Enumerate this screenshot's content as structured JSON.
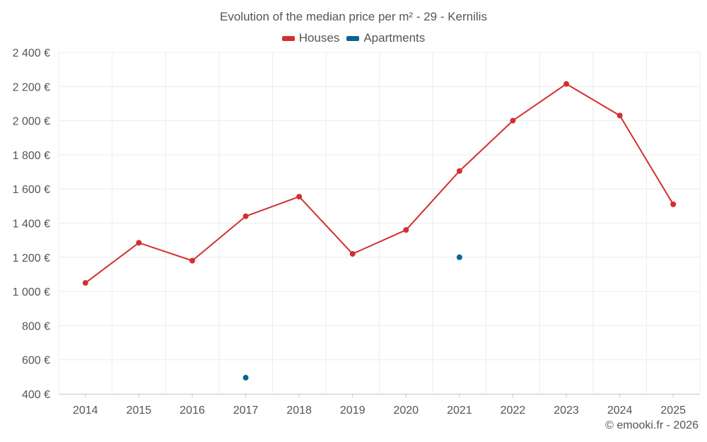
{
  "chart_data": {
    "type": "line",
    "title": "Evolution of the median price per m² - 29 - Kernilis",
    "categories": [
      "2014",
      "2015",
      "2016",
      "2017",
      "2018",
      "2019",
      "2020",
      "2021",
      "2022",
      "2023",
      "2024",
      "2025"
    ],
    "yticks": [
      400,
      600,
      800,
      1000,
      1200,
      1400,
      1600,
      1800,
      2000,
      2200,
      2400
    ],
    "ytick_labels": [
      "400 €",
      "600 €",
      "800 €",
      "1 000 €",
      "1 200 €",
      "1 400 €",
      "1 600 €",
      "1 800 €",
      "2 000 €",
      "2 200 €",
      "2 400 €"
    ],
    "ylim": [
      400,
      2400
    ],
    "xlabel": "",
    "ylabel": "",
    "grid": true,
    "legend_position": "top-center",
    "series": [
      {
        "name": "Houses",
        "color": "#d32f2f",
        "line": true,
        "values": [
          1050,
          1285,
          1180,
          1440,
          1555,
          1220,
          1360,
          1705,
          2000,
          2215,
          2030,
          1510
        ]
      },
      {
        "name": "Apartments",
        "color": "#0a6396",
        "line": false,
        "values": [
          null,
          null,
          null,
          495,
          null,
          null,
          null,
          1200,
          null,
          null,
          null,
          null
        ]
      }
    ]
  },
  "credit": "© emooki.fr - 2026"
}
